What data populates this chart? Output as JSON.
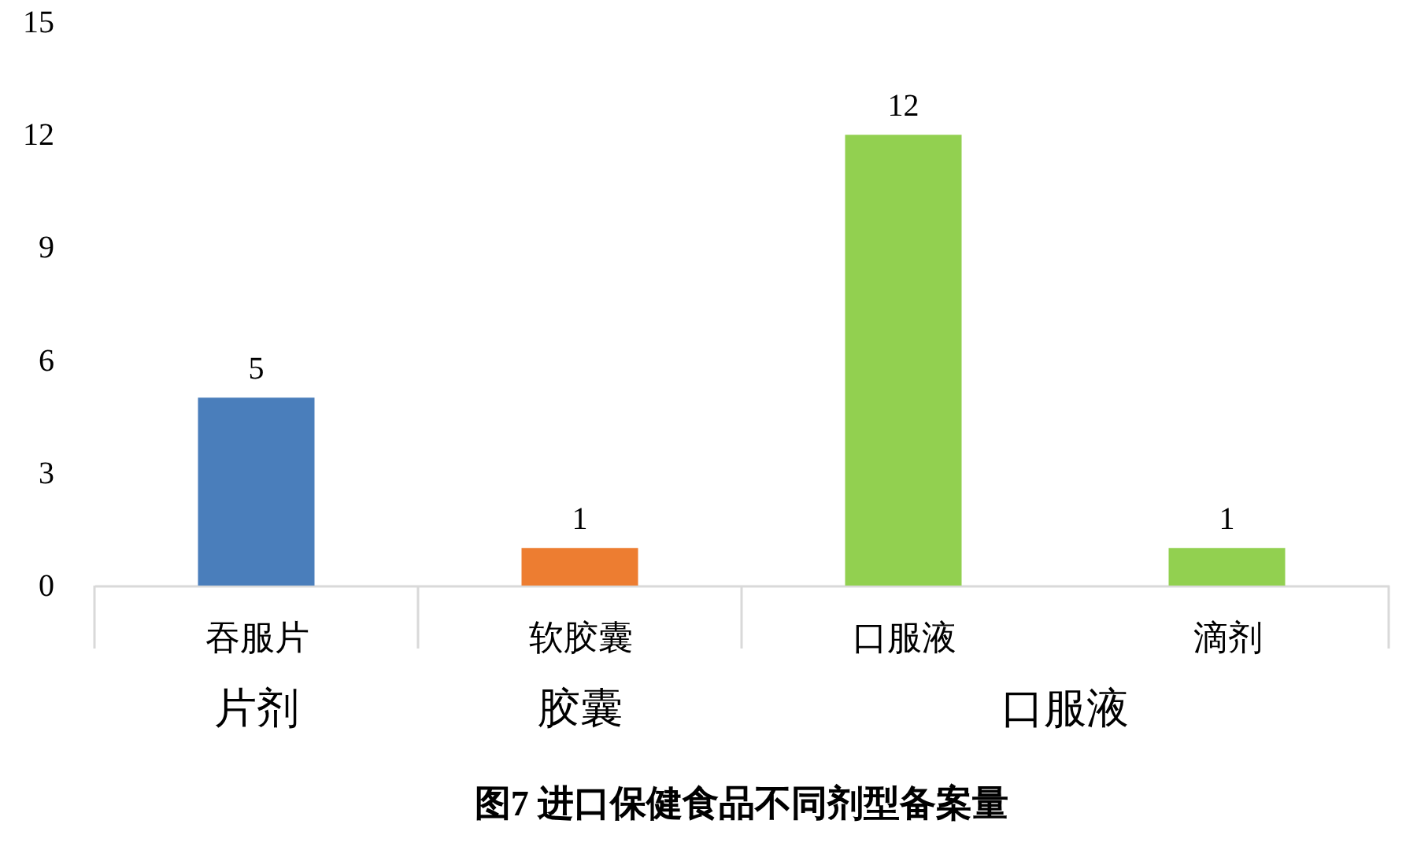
{
  "chart_data": {
    "type": "bar",
    "title": "图7 进口保健食品不同剂型备案量",
    "categories": [
      "吞服片",
      "软胶囊",
      "口服液",
      "滴剂"
    ],
    "series": [
      {
        "name": "片剂",
        "color": "#4a7ebb",
        "values": [
          5,
          null,
          null,
          null
        ]
      },
      {
        "name": "胶囊",
        "color": "#ed7d31",
        "values": [
          null,
          1,
          null,
          null
        ]
      },
      {
        "name": "口服液",
        "color": "#92d050",
        "values": [
          null,
          null,
          12,
          1
        ]
      }
    ],
    "ylim": [
      0,
      15
    ],
    "yticks": [
      0,
      3,
      6,
      9,
      12,
      15
    ],
    "data_labels": true
  }
}
